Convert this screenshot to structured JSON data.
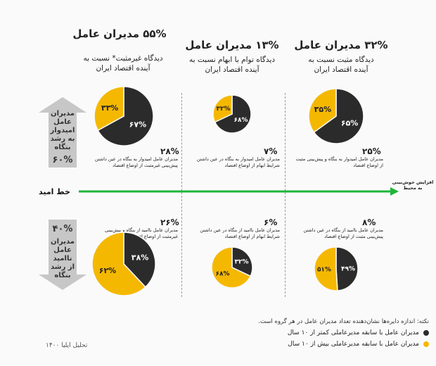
{
  "columns": [
    {
      "title": "۵۵% مدیران عامل",
      "subtitle": "دیدگاه غیرمثبت* نسبت به آینده اقتصاد ایران"
    },
    {
      "title": "۱۳% مدیران عامل",
      "subtitle": "دیدگاه توام با ابهام نسبت به آینده اقتصاد ایران"
    },
    {
      "title": "۳۲% مدیران عامل",
      "subtitle": "دیدگاه مثبت نسبت به آینده اقتصاد ایران"
    }
  ],
  "arrows": {
    "up": {
      "label": "مدیران عامل امیدوار به رشد بنگاه",
      "pct": "۶۰%"
    },
    "down": {
      "label": "مدیران عامل ناامید از رشد بنگاه",
      "pct": "۴۰%"
    }
  },
  "hope_line": {
    "label": "خط امید",
    "end_label": "افزایش خوش‌بینی به محیط"
  },
  "chart_data": {
    "type": "pie",
    "series_colors": {
      "short_tenure": "#2b2b2b",
      "long_tenure": "#f5b800"
    },
    "legend": [
      {
        "key": "short_tenure",
        "label": "مدیران عامل با سابقه مدیرعاملی کمتر از ۱۰ سال"
      },
      {
        "key": "long_tenure",
        "label": "مدیران عامل با سابقه مدیرعاملی بیش از ۱۰ سال"
      }
    ],
    "groups": [
      {
        "view": "non-positive",
        "outlook": "hopeful",
        "total_pct": "۲۸%",
        "desc": "مدیران عامل امیدوار به بنگاه در عین داشتن پیش‌بینی غیرمثبت از اوضاع اقتصاد",
        "short_tenure": 67,
        "long_tenure": 33,
        "short_label": "۶۷%",
        "long_label": "۳۳%"
      },
      {
        "view": "uncertain",
        "outlook": "hopeful",
        "total_pct": "۷%",
        "desc": "مدیران عامل امیدوار به بنگاه در عین داشتن شرایط ابهام از اوضاع اقتصاد",
        "short_tenure": 68,
        "long_tenure": 32,
        "short_label": "۶۸%",
        "long_label": "۳۲%"
      },
      {
        "view": "positive",
        "outlook": "hopeful",
        "total_pct": "۲۵%",
        "desc": "مدیران عامل امیدوار به بنگاه و پیش‌بینی مثبت از اوضاع اقتصاد",
        "short_tenure": 65,
        "long_tenure": 35,
        "short_label": "۶۵%",
        "long_label": "۳۵%"
      },
      {
        "view": "non-positive",
        "outlook": "hopeless",
        "total_pct": "۲۶%",
        "desc": "مدیران عامل ناامید از بنگاه و پیش‌بینی غیرمثبت از اوضاع اقتصاد",
        "short_tenure": 38,
        "long_tenure": 62,
        "short_label": "۳۸%",
        "long_label": "۶۲%"
      },
      {
        "view": "uncertain",
        "outlook": "hopeless",
        "total_pct": "۶%",
        "desc": "مدیران عامل ناامید از بنگاه در عین داشتن شرایط ابهام از اوضاع اقتصاد",
        "short_tenure": 32,
        "long_tenure": 68,
        "short_label": "۳۲%",
        "long_label": "۶۸%"
      },
      {
        "view": "positive",
        "outlook": "hopeless",
        "total_pct": "۸%",
        "desc": "مدیران عامل ناامید از بنگاه در عین داشتن پیش‌بینی مثبت از اوضاع اقتصاد",
        "short_tenure": 49,
        "long_tenure": 51,
        "short_label": "۴۹%",
        "long_label": "۵۱%"
      }
    ]
  },
  "note": "نکته: اندازه دایره‌ها نشان‌دهنده تعداد مدیران عامل در هر گروه است.",
  "source": "تحلیل ایلیا ۱۴۰۰"
}
